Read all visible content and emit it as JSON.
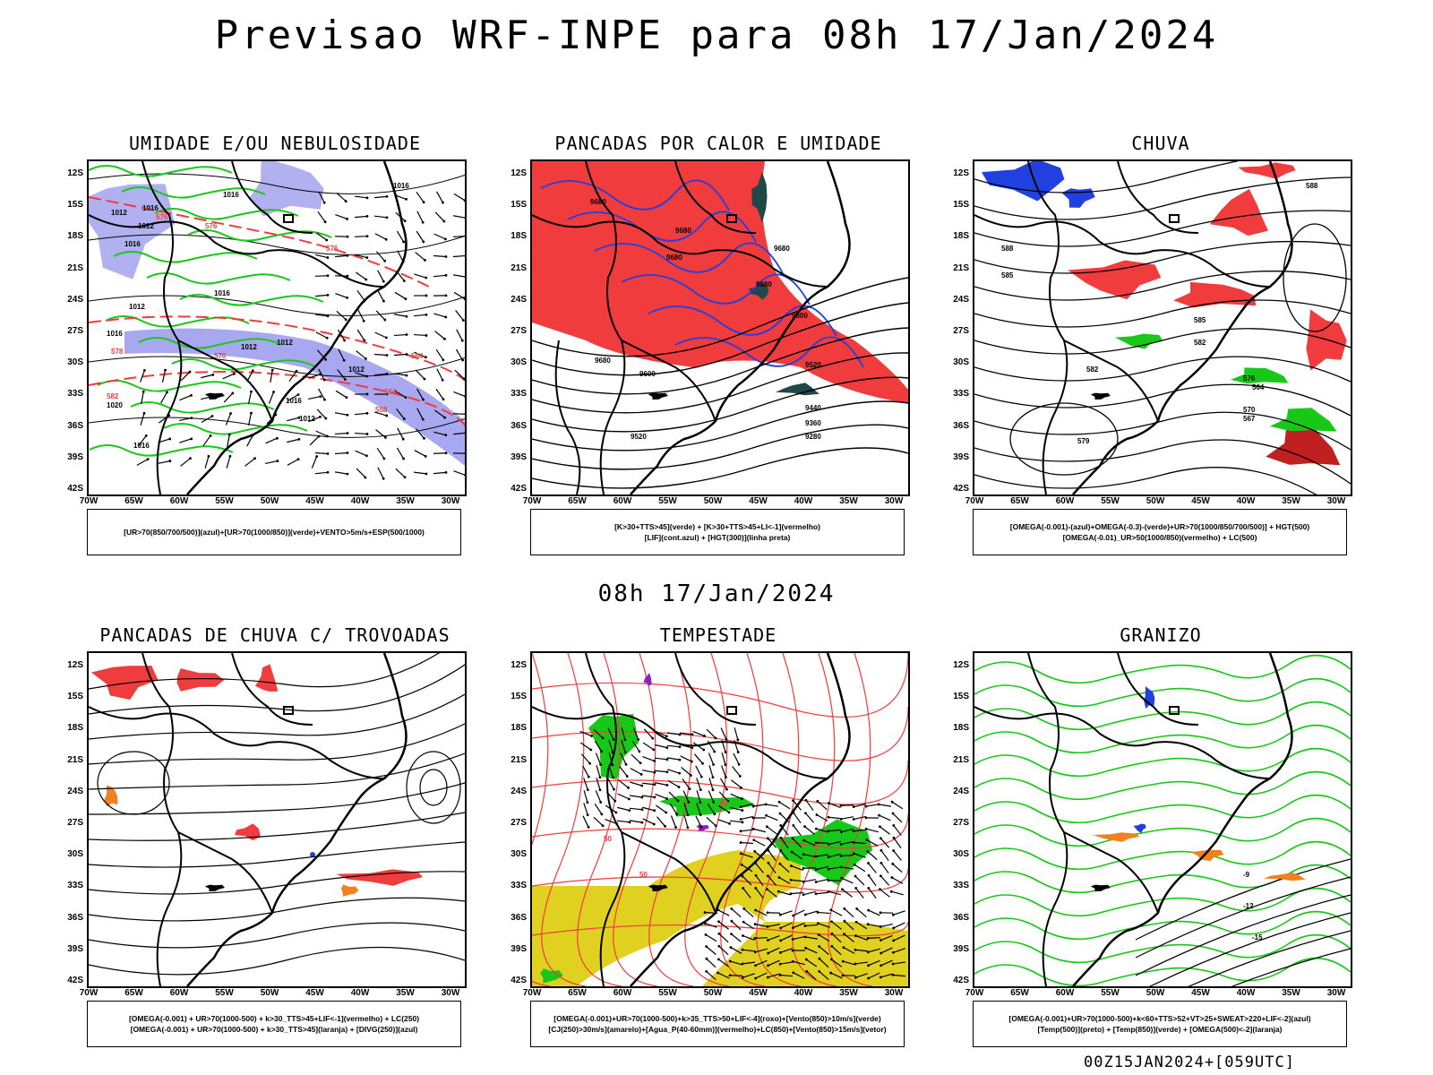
{
  "header": {
    "title": "Previsao WRF-INPE  para 08h 17/Jan/2024"
  },
  "mid_title": "08h 17/Jan/2024",
  "footer": "00Z15JAN2024+[059UTC]",
  "axes": {
    "lat_labels": [
      "12S",
      "15S",
      "18S",
      "21S",
      "24S",
      "27S",
      "30S",
      "33S",
      "36S",
      "39S",
      "42S"
    ],
    "lon_labels": [
      "70W",
      "65W",
      "60W",
      "55W",
      "50W",
      "45W",
      "40W",
      "35W",
      "30W"
    ]
  },
  "colors": {
    "red": "#f03c3c",
    "green": "#18c818",
    "blue": "#2040e0",
    "lavender": "#a8a8f0",
    "yellow": "#e0d020",
    "orange": "#f08020",
    "purple": "#9020c0",
    "darkteal": "#204848"
  },
  "panels": [
    {
      "title": "UMIDADE E/OU NEBULOSIDADE",
      "legend": [
        "[UR>70(850/700/500)](azul)+[UR>70(1000/850)](verde)+VENTO>5m/s+ESP(500/1000)"
      ],
      "map_labels": [
        "1016",
        "1016",
        "1012",
        "1012",
        "1016",
        "1016",
        "1012",
        "1016",
        "1012",
        "1012",
        "1012",
        "1012",
        "1016",
        "1020",
        "1016",
        "1016",
        "576",
        "576",
        "578",
        "582",
        "576",
        "570",
        "564",
        "558",
        "564"
      ]
    },
    {
      "title": "PANCADAS POR CALOR E UMIDADE",
      "legend": [
        "[K>30+TTS>45](verde) + [K>30+TTS>45+LI<-1](vermelho)",
        "[LIF](cont.azul) + [HGT(300)](linha preta)"
      ],
      "map_labels": [
        "9680",
        "9680",
        "9680",
        "9680",
        "9680",
        "9600",
        "9680",
        "9600",
        "9520",
        "9520",
        "9440",
        "9360",
        "9280"
      ]
    },
    {
      "title": "CHUVA",
      "legend": [
        "[OMEGA(-0.001)-(azul)+OMEGA(-0.3)-(verde)+UR>70(1000/850/700/500)] + HGT(500)",
        "[OMEGA(-0.01)_UR>50(1000/850)(vermelho) + LC(500)"
      ],
      "map_labels": [
        "588",
        "588",
        "585",
        "585",
        "582",
        "582",
        "579",
        "576",
        "570",
        "567",
        "564"
      ]
    },
    {
      "title": "PANCADAS DE CHUVA C/ TROVOADAS",
      "legend": [
        "[OMEGA(-0.001) + UR>70(1000-500) + k>30_TTS>45+LIF<-1](vermelho) + LC(250)",
        "[OMEGA(-0.001) + UR>70(1000-500) + k>30_TTS>45](laranja) + [DIVG(250)](azul)"
      ],
      "map_labels": []
    },
    {
      "title": "TEMPESTADE",
      "legend": [
        "[OMEGA(-0.001)+UR>70(1000-500)+k>35_TTS>50+LIF<-4](roxo)+[Vento(850)>10m/s](verde)",
        "[CJ(250)>30m/s](amarelo)+[Agua_P(40-60mm)](vermelho)+LC(850)+[Vento(850)>15m/s](vetor)"
      ],
      "map_labels": [
        "50",
        "50",
        "40"
      ]
    },
    {
      "title": "GRANIZO",
      "legend": [
        "[OMEGA(-0.001)+UR>70(1000-500)+k<60+TTS>52+VT>25+SWEAT>220+LIF<-2](azul)",
        "[Temp(500)](preto) + [Temp(850)](verde) + [OMEGA(500)<-2](laranja)"
      ],
      "map_labels": [
        "-9",
        "-12",
        "-15"
      ]
    }
  ]
}
